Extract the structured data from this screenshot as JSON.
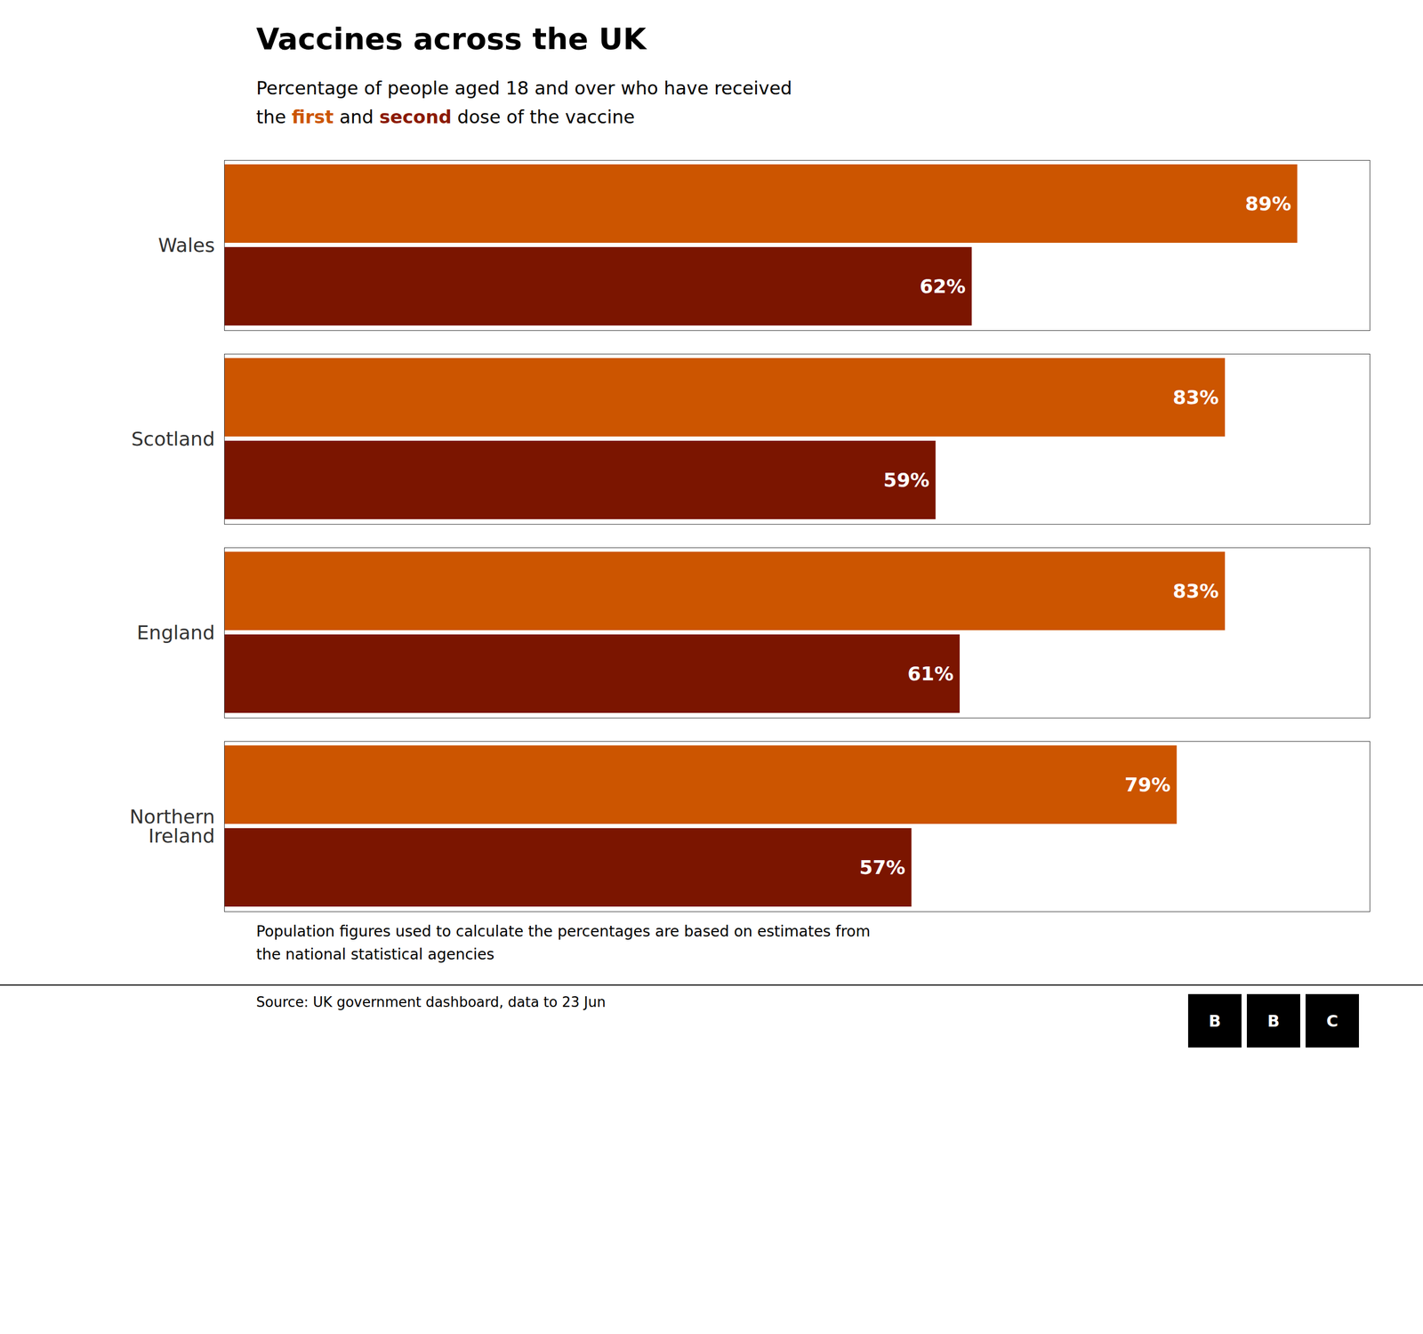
{
  "chart_data": {
    "type": "bar",
    "orientation": "horizontal",
    "title": "Vaccines across the UK",
    "subtitle": "Percentage of people aged 18 and over who have received",
    "subtitle_parts": [
      {
        "text": "the "
      },
      {
        "text": "first",
        "color": "#CC5500"
      },
      {
        "text": " and "
      },
      {
        "text": "second",
        "color": "#8B1A00"
      },
      {
        "text": " dose of the vaccine"
      }
    ],
    "categories": [
      "Wales",
      "Scotland",
      "England",
      "Northern\nIreland"
    ],
    "series": [
      {
        "name": "first",
        "color": "#CC5500",
        "values": [
          89,
          83,
          83,
          79
        ],
        "value_labels": [
          "89%",
          "83%",
          "83%",
          "79%"
        ]
      },
      {
        "name": "second",
        "color": "#7B1500",
        "values": [
          62,
          59,
          61,
          57
        ],
        "value_labels": [
          "62%",
          "59%",
          "61%",
          "57%"
        ]
      }
    ],
    "xlim": [
      0,
      95
    ],
    "data_labels": true,
    "tick_labels": "y",
    "grid": false,
    "footnote": [
      "Population figures used to calculate the percentages are based on estimates from",
      "the national statistical agencies"
    ],
    "source": "Source: UK government dashboard, data to 23 Jun",
    "logo": "BBC"
  }
}
